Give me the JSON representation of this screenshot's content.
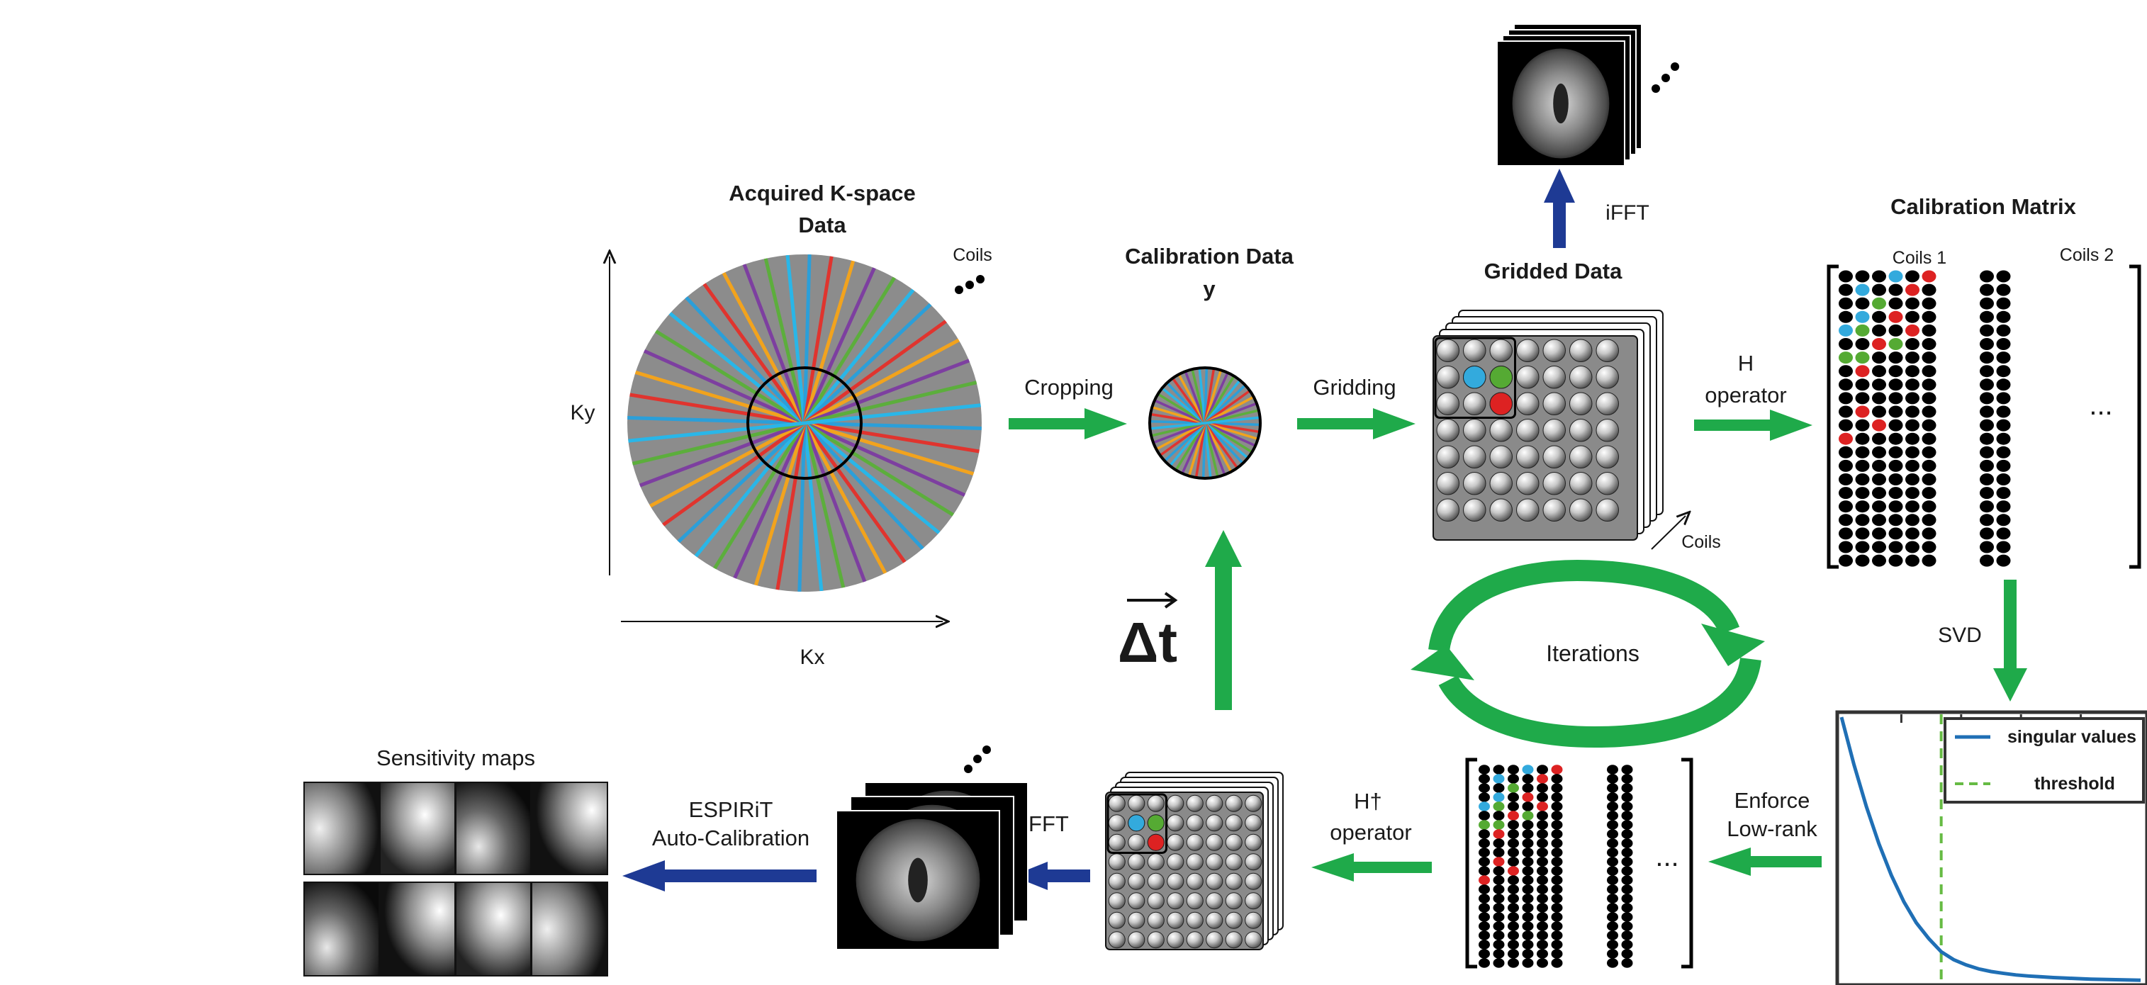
{
  "title_acquired_line1": "Acquired K-space",
  "title_acquired_line2": "Data",
  "coils_label_top": "Coils",
  "axis_ky": "Ky",
  "axis_kx": "Kx",
  "label_cropping": "Cropping",
  "title_calibration_line1": "Calibration Data",
  "title_calibration_line2": "y",
  "label_gridding": "Gridding",
  "title_gridded": "Gridded Data",
  "label_ifft_top": "iFFT",
  "coils_label_grid": "Coils",
  "label_h_line1": "H",
  "label_h_line2": "operator",
  "title_calib_matrix": "Calibration Matrix",
  "coils1": "Coils 1",
  "coils2": "Coils 2",
  "ellipsis": "...",
  "label_svd": "SVD",
  "legend_singular": "singular values",
  "legend_threshold": "threshold",
  "label_enforce_line1": "Enforce",
  "label_enforce_line2": "Low-rank",
  "label_hdagger_line1": "H†",
  "label_hdagger_line2": "operator",
  "label_iterations": "Iterations",
  "label_delta_t": "Δt",
  "label_ifft_bottom": "iFFT",
  "label_espirit_line1": "ESPIRiT",
  "label_espirit_line2": "Auto-Calibration",
  "title_sensitivity": "Sensitivity maps",
  "colors": {
    "flow_green": "#1faa4a",
    "flow_blue": "#1e3a94",
    "spoke_palette": [
      "#2b9fd9",
      "#e0342e",
      "#f2a31d",
      "#7d3fa0",
      "#5cae3c",
      "#29b6e8"
    ],
    "kspace_bg": "#8c8c8c",
    "dot_cyan": "#33aadd",
    "dot_green": "#55aa33",
    "dot_red": "#dd2222",
    "curve": "#1f6fb5",
    "threshold": "#66bb44"
  },
  "chart_data": {
    "type": "line",
    "title": "",
    "xlabel": "",
    "ylabel": "",
    "series": [
      {
        "name": "singular values",
        "values": [
          1.0,
          0.82,
          0.66,
          0.52,
          0.4,
          0.3,
          0.22,
          0.16,
          0.11,
          0.08,
          0.06,
          0.045,
          0.035,
          0.028,
          0.022,
          0.018,
          0.015,
          0.012,
          0.01,
          0.008,
          0.006,
          0.005,
          0.004,
          0.003,
          0.002
        ]
      }
    ],
    "threshold_index": 8,
    "legend_position": "top-right",
    "grid": false
  }
}
